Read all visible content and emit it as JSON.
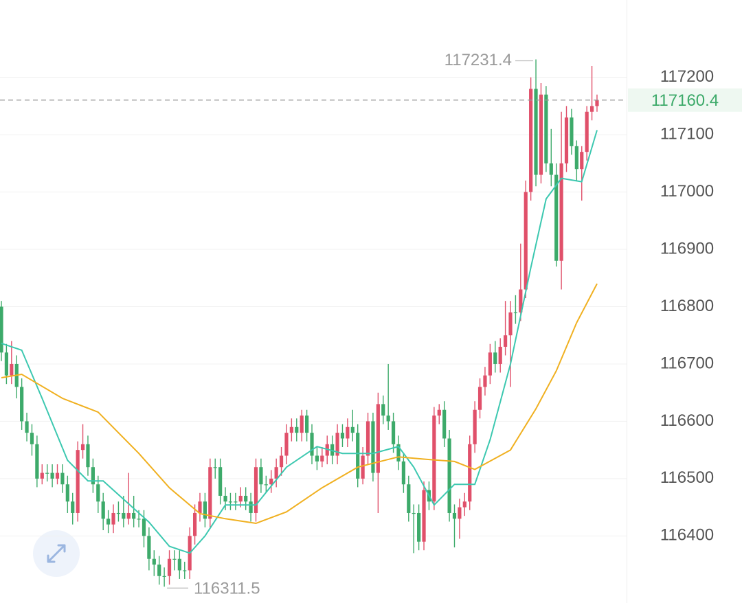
{
  "chart_data": {
    "type": "candlestick",
    "ylim": [
      116283,
      117335
    ],
    "yticks": [
      116400,
      116500,
      116600,
      116700,
      116800,
      116900,
      117000,
      117100,
      117200
    ],
    "grid": true,
    "up_color": "#e0506a",
    "down_color": "#3daa6a",
    "open": [
      116800,
      116720,
      116680,
      116700,
      116660,
      116600,
      116580,
      116560,
      116500,
      116510,
      116510,
      116500,
      116510,
      116490,
      116460,
      116440,
      116550,
      116560,
      116520,
      116490,
      116460,
      116430,
      116420,
      116440,
      116440,
      116430,
      116440,
      116430,
      116430,
      116400,
      116360,
      116350,
      116330,
      116330,
      116360,
      116360,
      116340,
      116340,
      116400,
      116440,
      116460,
      116430,
      116520,
      116520,
      116470,
      116460,
      116460,
      116460,
      116470,
      116460,
      116440,
      116520,
      116490,
      116490,
      116500,
      116520,
      116540,
      116580,
      116590,
      116580,
      116610,
      116580,
      116540,
      116530,
      116540,
      116560,
      116540,
      116580,
      116570,
      116590,
      116580,
      116500,
      116540,
      116600,
      116510,
      116630,
      116610,
      116600,
      116560,
      116530,
      116490,
      116440,
      116440,
      116390,
      116480,
      116460,
      116610,
      116620,
      116570,
      116440,
      116430,
      116450,
      116460,
      116560,
      116620,
      116660,
      116680,
      116720,
      116700,
      116730,
      116750,
      116790,
      116790,
      116830,
      117000,
      117180,
      117030,
      117170,
      117050,
      117030,
      116880,
      117050,
      117130,
      117080,
      117040,
      117070,
      117140,
      117150
    ],
    "high": [
      116810,
      116735,
      116740,
      116715,
      116675,
      116615,
      116595,
      116575,
      116525,
      116525,
      116525,
      116525,
      116525,
      116505,
      116475,
      116565,
      116595,
      116575,
      116535,
      116505,
      116475,
      116445,
      116455,
      116460,
      116470,
      116510,
      116470,
      116445,
      116445,
      116415,
      116375,
      116365,
      116345,
      116375,
      116375,
      116375,
      116355,
      116415,
      116455,
      116475,
      116475,
      116535,
      116535,
      116535,
      116485,
      116475,
      116475,
      116485,
      116485,
      116475,
      116535,
      116535,
      116505,
      116515,
      116535,
      116555,
      116595,
      116605,
      116605,
      116620,
      116620,
      116595,
      116555,
      116555,
      116575,
      116575,
      116595,
      116595,
      116605,
      116620,
      116595,
      116555,
      116615,
      116615,
      116650,
      116645,
      116700,
      116615,
      116575,
      116545,
      116505,
      116455,
      116455,
      116495,
      116495,
      116625,
      116630,
      116635,
      116585,
      116455,
      116465,
      116475,
      116575,
      116635,
      116675,
      116695,
      116735,
      116740,
      116745,
      116810,
      116810,
      116820,
      116910,
      117020,
      117200,
      117231.4,
      117190,
      117185,
      117110,
      117050,
      117140,
      117150,
      117145,
      117090,
      117080,
      117150,
      117220,
      117170
    ],
    "low": [
      116705,
      116665,
      116665,
      116640,
      116585,
      116565,
      116540,
      116485,
      116490,
      116495,
      116485,
      116490,
      116475,
      116440,
      116420,
      116425,
      116535,
      116505,
      116475,
      116440,
      116410,
      116405,
      116405,
      116425,
      116415,
      116420,
      116415,
      116415,
      116380,
      116340,
      116330,
      116315,
      116311.5,
      116315,
      116340,
      116325,
      116325,
      116325,
      116385,
      116425,
      116415,
      116415,
      116500,
      116455,
      116445,
      116445,
      116445,
      116450,
      116445,
      116425,
      116425,
      116475,
      116475,
      116475,
      116485,
      116505,
      116525,
      116565,
      116565,
      116565,
      116565,
      116525,
      116515,
      116520,
      116525,
      116525,
      116525,
      116555,
      116555,
      116565,
      116485,
      116490,
      116525,
      116495,
      116440,
      116595,
      116585,
      116545,
      116515,
      116475,
      116425,
      116370,
      116375,
      116375,
      116445,
      116445,
      116595,
      116555,
      116425,
      116380,
      116395,
      116435,
      116445,
      116545,
      116605,
      116645,
      116665,
      116685,
      116685,
      116715,
      116660,
      116770,
      116775,
      116815,
      116985,
      117010,
      117015,
      117035,
      117010,
      116870,
      116830,
      117035,
      117065,
      117020,
      116985,
      117055,
      117125,
      117140
    ],
    "close": [
      116720,
      116680,
      116700,
      116660,
      116600,
      116580,
      116560,
      116500,
      116510,
      116510,
      116500,
      116510,
      116490,
      116460,
      116440,
      116550,
      116560,
      116520,
      116490,
      116460,
      116430,
      116420,
      116440,
      116440,
      116430,
      116440,
      116430,
      116430,
      116400,
      116360,
      116350,
      116330,
      116330,
      116360,
      116360,
      116340,
      116340,
      116400,
      116440,
      116460,
      116430,
      116520,
      116520,
      116470,
      116460,
      116460,
      116460,
      116470,
      116460,
      116440,
      116520,
      116490,
      116490,
      116500,
      116520,
      116540,
      116580,
      116590,
      116580,
      116610,
      116580,
      116540,
      116530,
      116540,
      116560,
      116540,
      116580,
      116570,
      116590,
      116580,
      116500,
      116540,
      116600,
      116510,
      116630,
      116610,
      116600,
      116560,
      116530,
      116490,
      116440,
      116440,
      116390,
      116480,
      116460,
      116610,
      116620,
      116570,
      116440,
      116430,
      116450,
      116460,
      116560,
      116620,
      116660,
      116680,
      116720,
      116700,
      116730,
      116750,
      116790,
      116790,
      116830,
      117000,
      117180,
      117030,
      117170,
      117050,
      117030,
      116880,
      117050,
      117130,
      117080,
      117040,
      117070,
      117140,
      117150,
      117160.4
    ],
    "series": [
      {
        "color": "#3cc8b0",
        "x": [
          0,
          4,
          8,
          13,
          17,
          20,
          23,
          29,
          33,
          37,
          40,
          44,
          50,
          56,
          62,
          67,
          73,
          78,
          81,
          85,
          89,
          93,
          96,
          100,
          104,
          107,
          110,
          114,
          117
        ],
        "values": [
          116736,
          116724,
          116640,
          116532,
          116496,
          116496,
          116472,
          116424,
          116382,
          116370,
          116400,
          116454,
          116454,
          116520,
          116556,
          116544,
          116544,
          116556,
          116520,
          116454,
          116490,
          116490,
          116568,
          116700,
          116868,
          116988,
          117024,
          117018,
          117108
        ]
      },
      {
        "color": "#f0b020",
        "x": [
          0,
          4,
          12,
          19,
          27,
          33,
          39,
          44,
          50,
          56,
          63,
          70,
          78,
          83,
          89,
          93,
          100,
          105,
          109,
          113,
          117
        ],
        "values": [
          116676,
          116682,
          116640,
          116616,
          116544,
          116484,
          116439,
          116430,
          116422,
          116442,
          116484,
          116520,
          116538,
          116534,
          116530,
          116516,
          116550,
          116622,
          116688,
          116772,
          116840
        ]
      }
    ]
  }
}
